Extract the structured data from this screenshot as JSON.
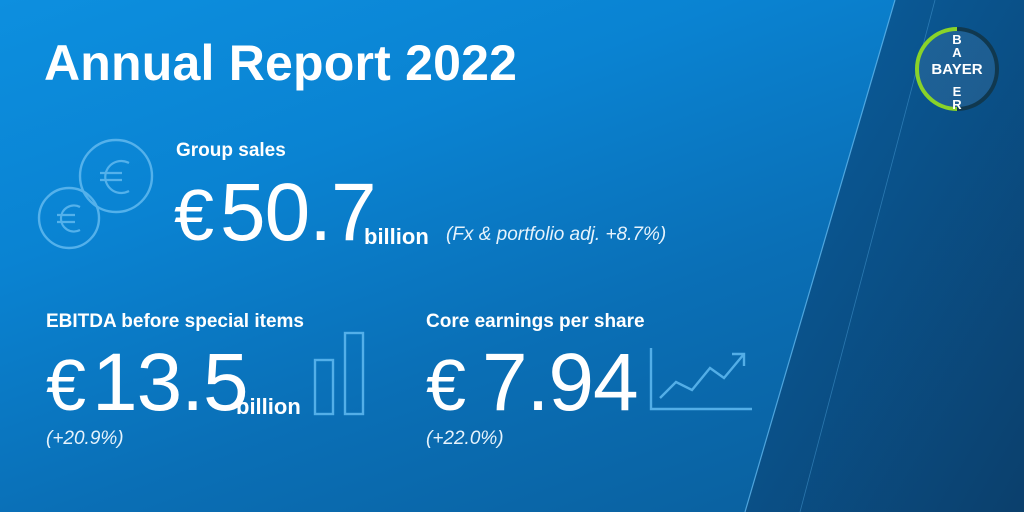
{
  "title": "Annual Report 2022",
  "logo": {
    "vertical": [
      "B",
      "A",
      "Y",
      "E",
      "R"
    ],
    "horizontal": "BAYER",
    "green": "#89d329",
    "blue": "#10384f"
  },
  "group_sales": {
    "label": "Group sales",
    "currency": "€",
    "value": "50.7",
    "unit": "billion",
    "note": "(Fx & portfolio adj. +8.7%)"
  },
  "ebitda": {
    "label": "EBITDA before special items",
    "currency": "€",
    "value": "13.5",
    "unit": "billion",
    "change": "(+20.9%)"
  },
  "eps": {
    "label": "Core earnings per share",
    "currency": "€",
    "value": "7.94",
    "change": "(+22.0%)"
  },
  "icons": [
    "euro-coins-icon",
    "bar-chart-icon",
    "trend-up-chart-icon"
  ],
  "colors": {
    "background": "#0a83d2",
    "accent_dark": "#0a4b7d"
  }
}
